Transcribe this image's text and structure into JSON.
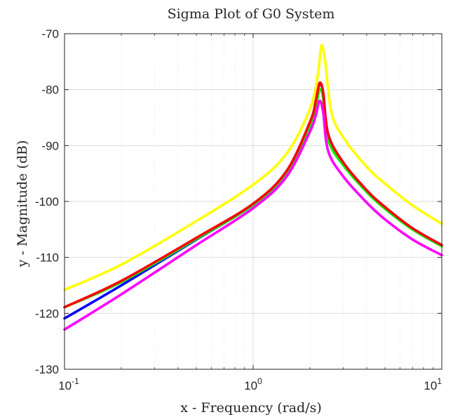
{
  "chart_data": {
    "type": "line",
    "title": "Sigma Plot of G0 System",
    "xlabel": "x - Frequency (rad/s)",
    "ylabel": "y - Magnitude (dB)",
    "xscale": "log",
    "xlim": [
      0.1,
      10
    ],
    "ylim": [
      -130,
      -70
    ],
    "x_ticks": [
      {
        "base": "10",
        "exp": "-1"
      },
      {
        "base": "10",
        "exp": "0"
      },
      {
        "base": "10",
        "exp": "1"
      }
    ],
    "y_ticks": [
      "-70",
      "-80",
      "-90",
      "-100",
      "-110",
      "-120",
      "-130"
    ],
    "y_tick_values": [
      -70,
      -80,
      -90,
      -100,
      -110,
      -120,
      -130
    ],
    "grid": true,
    "minor_grid": true,
    "series": [
      {
        "color": "#ffff00",
        "x": [
          0.1,
          0.2,
          0.5,
          1,
          1.5,
          2,
          2.2,
          2.3,
          2.4,
          2.6,
          3,
          4,
          5,
          7,
          10
        ],
        "y": [
          -115.8,
          -111.3,
          -103.5,
          -97.0,
          -91.5,
          -83.5,
          -77.5,
          -72.2,
          -74.5,
          -84.0,
          -88.5,
          -93.8,
          -96.8,
          -100.7,
          -104.0
        ]
      },
      {
        "color": "#0000ff",
        "x": [
          0.1,
          0.2,
          0.5,
          1,
          1.5,
          2,
          2.15,
          2.25,
          2.35,
          2.5,
          3,
          4,
          5,
          7,
          10
        ],
        "y": [
          -120.9,
          -115.0,
          -106.8,
          -100.6,
          -94.8,
          -86.0,
          -82.0,
          -79.0,
          -80.5,
          -88.0,
          -93.0,
          -98.0,
          -101.0,
          -104.8,
          -107.8
        ]
      },
      {
        "color": "#00ff00",
        "x": [
          0.1,
          0.2,
          0.5,
          1,
          1.5,
          2,
          2.15,
          2.25,
          2.35,
          2.5,
          3,
          4,
          5,
          7,
          10
        ],
        "y": [
          -118.9,
          -114.4,
          -106.7,
          -100.6,
          -94.8,
          -86.5,
          -83.0,
          -80.0,
          -81.5,
          -89.0,
          -93.5,
          -98.3,
          -101.3,
          -105.0,
          -108.0
        ]
      },
      {
        "color": "#ff0000",
        "x": [
          0.1,
          0.2,
          0.5,
          1,
          1.5,
          2,
          2.15,
          2.25,
          2.35,
          2.5,
          3,
          4,
          5,
          7,
          10
        ],
        "y": [
          -118.9,
          -114.2,
          -106.5,
          -100.4,
          -94.6,
          -85.8,
          -82.0,
          -78.8,
          -80.5,
          -88.0,
          -93.0,
          -98.0,
          -101.0,
          -104.8,
          -107.8
        ]
      },
      {
        "color": "#ff00ff",
        "x": [
          0.1,
          0.2,
          0.5,
          1,
          1.5,
          2,
          2.15,
          2.25,
          2.35,
          2.5,
          3,
          4,
          5,
          7,
          10
        ],
        "y": [
          -122.9,
          -116.6,
          -107.8,
          -101.2,
          -95.6,
          -87.5,
          -84.5,
          -82.0,
          -84.0,
          -91.0,
          -95.5,
          -100.2,
          -103.2,
          -106.8,
          -109.6
        ]
      }
    ]
  }
}
